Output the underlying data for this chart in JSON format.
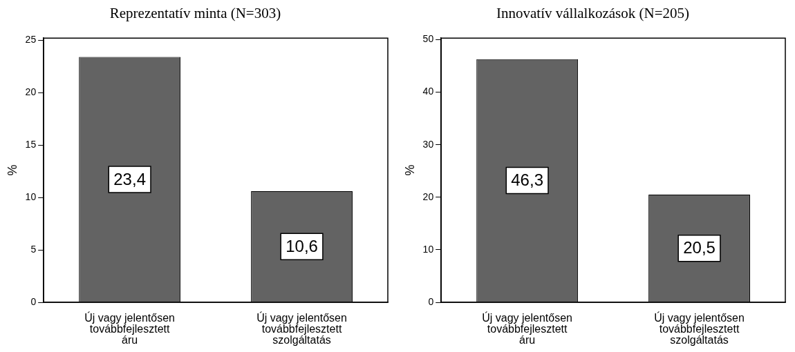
{
  "chart_data": [
    {
      "type": "bar",
      "title": "Reprezentatív minta (N=303)",
      "ylabel": "%",
      "categories": [
        "Új vagy jelentősen továbbfejlesztett áru",
        "Új vagy jelentősen továbbfejlesztett szolgáltatás"
      ],
      "values": [
        23.4,
        10.6
      ],
      "value_labels": [
        "23,4",
        "10,6"
      ],
      "color": "#636363",
      "ylim": [
        0,
        25.2
      ],
      "yticks": [
        0,
        5,
        10,
        15,
        20,
        25
      ],
      "grid": false,
      "legend": false
    },
    {
      "type": "bar",
      "title": "Innovatív vállalkozások (N=205)",
      "ylabel": "%",
      "categories": [
        "Új vagy jelentősen továbbfejlesztett áru",
        "Új vagy jelentősen továbbfejlesztett szolgáltatás"
      ],
      "values": [
        46.3,
        20.5
      ],
      "value_labels": [
        "46,3",
        "20,5"
      ],
      "color": "#636363",
      "ylim": [
        0,
        50.3
      ],
      "yticks": [
        0,
        10,
        20,
        30,
        40,
        50
      ],
      "grid": false,
      "legend": false
    }
  ]
}
